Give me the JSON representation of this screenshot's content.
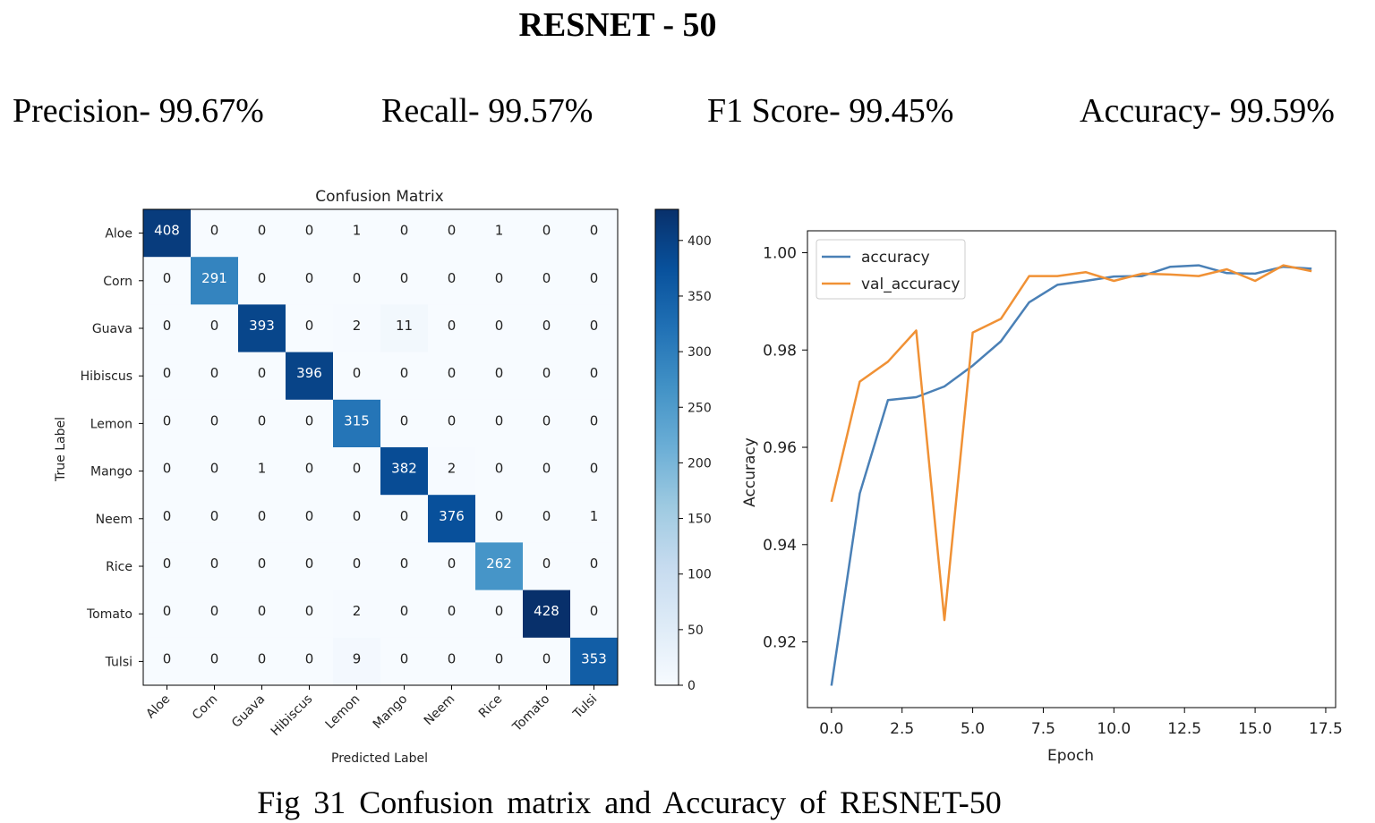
{
  "title": "RESNET - 50",
  "metrics": [
    {
      "label": "Precision- 99.67%"
    },
    {
      "label": "Recall- 99.57%"
    },
    {
      "label": "F1 Score- 99.45%"
    },
    {
      "label": "Accuracy- 99.59%"
    }
  ],
  "caption": "Fig  31    Confusion matrix  and   Accuracy  of  RESNET-50",
  "chart_data": [
    {
      "type": "heatmap",
      "title": "Confusion Matrix",
      "xlabel": "Predicted Label",
      "ylabel": "True Label",
      "labels": [
        "Aloe",
        "Corn",
        "Guava",
        "Hibiscus",
        "Lemon",
        "Mango",
        "Neem",
        "Rice",
        "Tomato",
        "Tulsi"
      ],
      "matrix": [
        [
          408,
          0,
          0,
          0,
          1,
          0,
          0,
          1,
          0,
          0
        ],
        [
          0,
          291,
          0,
          0,
          0,
          0,
          0,
          0,
          0,
          0
        ],
        [
          0,
          0,
          393,
          0,
          2,
          11,
          0,
          0,
          0,
          0
        ],
        [
          0,
          0,
          0,
          396,
          0,
          0,
          0,
          0,
          0,
          0
        ],
        [
          0,
          0,
          0,
          0,
          315,
          0,
          0,
          0,
          0,
          0
        ],
        [
          0,
          0,
          1,
          0,
          0,
          382,
          2,
          0,
          0,
          0
        ],
        [
          0,
          0,
          0,
          0,
          0,
          0,
          376,
          0,
          0,
          1
        ],
        [
          0,
          0,
          0,
          0,
          0,
          0,
          0,
          262,
          0,
          0
        ],
        [
          0,
          0,
          0,
          0,
          2,
          0,
          0,
          0,
          428,
          0
        ],
        [
          0,
          0,
          0,
          0,
          9,
          0,
          0,
          0,
          0,
          353
        ]
      ],
      "colorbar_ticks": [
        0,
        50,
        100,
        150,
        200,
        250,
        300,
        350,
        400
      ],
      "colorbar_range": [
        0,
        428
      ],
      "colormap": "Blues"
    },
    {
      "type": "line",
      "xlabel": "Epoch",
      "ylabel": "Accuracy",
      "xlim": [
        -0.85,
        17.85
      ],
      "ylim": [
        0.9065,
        1.0045
      ],
      "x_ticks": [
        "0.0",
        "2.5",
        "5.0",
        "7.5",
        "10.0",
        "12.5",
        "15.0",
        "17.5"
      ],
      "y_ticks": [
        "0.92",
        "0.94",
        "0.96",
        "0.98",
        "1.00"
      ],
      "legend_position": "upper-left",
      "x": [
        0,
        1,
        2,
        3,
        4,
        5,
        6,
        7,
        8,
        9,
        10,
        11,
        12,
        13,
        14,
        15,
        16,
        17
      ],
      "series": [
        {
          "name": "accuracy",
          "color": "#4a80b6",
          "values": [
            0.911,
            0.9505,
            0.9697,
            0.9703,
            0.9725,
            0.9768,
            0.9818,
            0.9898,
            0.9934,
            0.9942,
            0.9951,
            0.9952,
            0.9971,
            0.9974,
            0.9958,
            0.9957,
            0.9971,
            0.9967
          ]
        },
        {
          "name": "val_accuracy",
          "color": "#f09135",
          "values": [
            0.9488,
            0.9735,
            0.9776,
            0.984,
            0.9245,
            0.9836,
            0.9864,
            0.9952,
            0.9952,
            0.996,
            0.9942,
            0.9957,
            0.9955,
            0.9952,
            0.9966,
            0.9942,
            0.9974,
            0.9962
          ]
        }
      ]
    }
  ]
}
